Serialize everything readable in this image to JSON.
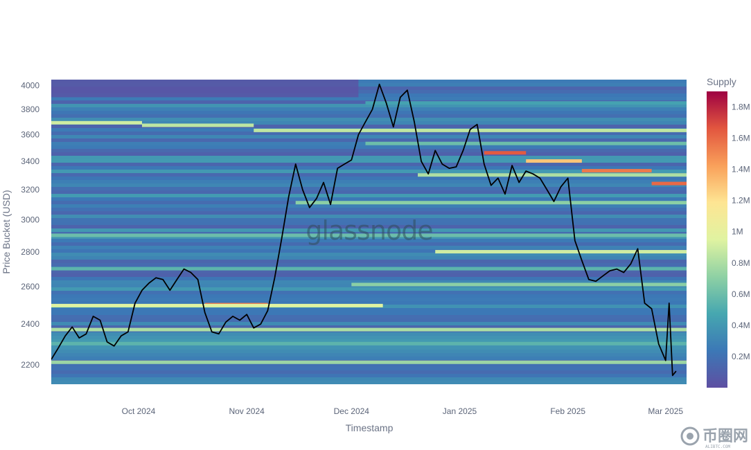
{
  "watermark": "glassnode",
  "brand": {
    "name": "币圈网",
    "sub": "ALIBTC.COM"
  },
  "colors": {
    "price_line": "#000000",
    "scale": [
      "#5e4fa2",
      "#3c78b6",
      "#46a7b0",
      "#8fd1a4",
      "#e0f3a1",
      "#fee593",
      "#f9a05a",
      "#e2563f",
      "#9e0142"
    ]
  },
  "chart_data": {
    "type": "heatmap",
    "xlabel": "Timestamp",
    "ylabel": "Price Bucket (USD)",
    "y_scale": "log",
    "ylim": [
      2110,
      4050
    ],
    "xlim": [
      "2024-09-06",
      "2025-03-07"
    ],
    "x_ticks": [
      {
        "date": "2024-10-01",
        "label": "Oct 2024"
      },
      {
        "date": "2024-11-01",
        "label": "Nov 2024"
      },
      {
        "date": "2024-12-01",
        "label": "Dec 2024"
      },
      {
        "date": "2025-01-01",
        "label": "Jan 2025"
      },
      {
        "date": "2025-02-01",
        "label": "Feb 2025"
      },
      {
        "date": "2025-03-01",
        "label": "Mar 2025"
      }
    ],
    "y_ticks": [
      2200,
      2400,
      2600,
      2800,
      3000,
      3200,
      3400,
      3600,
      3800,
      4000
    ],
    "colorbar": {
      "title": "Supply",
      "range": [
        0,
        1.9
      ],
      "ticks": [
        {
          "value": 0.2,
          "label": "0.2M"
        },
        {
          "value": 0.4,
          "label": "0.4M"
        },
        {
          "value": 0.6,
          "label": "0.6M"
        },
        {
          "value": 0.8,
          "label": "0.8M"
        },
        {
          "value": 1.0,
          "label": "1M"
        },
        {
          "value": 1.2,
          "label": "1.2M"
        },
        {
          "value": 1.4,
          "label": "1.4M"
        },
        {
          "value": 1.6,
          "label": "1.6M"
        },
        {
          "value": 1.8,
          "label": "1.8M"
        }
      ]
    },
    "base_supply": 0.3,
    "supply_bands": [
      {
        "price": 3690,
        "start": "2024-09-06",
        "end": "2024-10-02",
        "value": 0.9
      },
      {
        "price": 3670,
        "start": "2024-10-02",
        "end": "2024-11-03",
        "value": 0.85
      },
      {
        "price": 3630,
        "start": "2024-11-03",
        "end": "2025-03-07",
        "value": 0.85
      },
      {
        "price": 3460,
        "start": "2025-01-08",
        "end": "2025-01-20",
        "value": 1.65
      },
      {
        "price": 3400,
        "start": "2025-01-20",
        "end": "2025-02-05",
        "value": 1.3
      },
      {
        "price": 3330,
        "start": "2025-02-05",
        "end": "2025-02-25",
        "value": 1.55
      },
      {
        "price": 3240,
        "start": "2025-02-25",
        "end": "2025-03-07",
        "value": 1.6
      },
      {
        "price": 3300,
        "start": "2024-12-20",
        "end": "2025-03-07",
        "value": 0.8
      },
      {
        "price": 3110,
        "start": "2024-11-15",
        "end": "2025-03-07",
        "value": 0.7
      },
      {
        "price": 2800,
        "start": "2024-12-25",
        "end": "2025-03-07",
        "value": 0.9
      },
      {
        "price": 2610,
        "start": "2024-12-01",
        "end": "2025-03-07",
        "value": 0.7
      },
      {
        "price": 2500,
        "start": "2024-10-20",
        "end": "2024-11-07",
        "value": 1.55
      },
      {
        "price": 2495,
        "start": "2024-09-06",
        "end": "2024-12-10",
        "value": 0.95
      },
      {
        "price": 2370,
        "start": "2024-09-06",
        "end": "2025-03-07",
        "value": 0.8
      },
      {
        "price": 2210,
        "start": "2024-09-06",
        "end": "2025-03-07",
        "value": 0.75
      },
      {
        "price": 2900,
        "start": "2024-09-06",
        "end": "2025-03-07",
        "value": 0.6
      },
      {
        "price": 2700,
        "start": "2024-09-06",
        "end": "2025-03-07",
        "value": 0.55
      },
      {
        "price": 2300,
        "start": "2024-09-06",
        "end": "2025-03-07",
        "value": 0.55
      },
      {
        "price": 3850,
        "start": "2024-12-05",
        "end": "2025-03-07",
        "value": 0.45
      },
      {
        "price": 3530,
        "start": "2024-12-05",
        "end": "2025-03-07",
        "value": 0.6
      }
    ],
    "series": [
      {
        "name": "Price",
        "points": [
          [
            "2024-09-06",
            2225
          ],
          [
            "2024-09-08",
            2280
          ],
          [
            "2024-09-10",
            2340
          ],
          [
            "2024-09-12",
            2385
          ],
          [
            "2024-09-14",
            2330
          ],
          [
            "2024-09-16",
            2350
          ],
          [
            "2024-09-18",
            2440
          ],
          [
            "2024-09-20",
            2420
          ],
          [
            "2024-09-22",
            2310
          ],
          [
            "2024-09-24",
            2290
          ],
          [
            "2024-09-26",
            2340
          ],
          [
            "2024-09-28",
            2360
          ],
          [
            "2024-09-30",
            2510
          ],
          [
            "2024-10-02",
            2580
          ],
          [
            "2024-10-04",
            2620
          ],
          [
            "2024-10-06",
            2650
          ],
          [
            "2024-10-08",
            2640
          ],
          [
            "2024-10-10",
            2580
          ],
          [
            "2024-10-12",
            2640
          ],
          [
            "2024-10-14",
            2700
          ],
          [
            "2024-10-16",
            2680
          ],
          [
            "2024-10-18",
            2640
          ],
          [
            "2024-10-20",
            2460
          ],
          [
            "2024-10-22",
            2360
          ],
          [
            "2024-10-24",
            2350
          ],
          [
            "2024-10-26",
            2410
          ],
          [
            "2024-10-28",
            2440
          ],
          [
            "2024-10-30",
            2420
          ],
          [
            "2024-11-01",
            2450
          ],
          [
            "2024-11-03",
            2380
          ],
          [
            "2024-11-05",
            2400
          ],
          [
            "2024-11-07",
            2470
          ],
          [
            "2024-11-09",
            2650
          ],
          [
            "2024-11-11",
            2880
          ],
          [
            "2024-11-13",
            3150
          ],
          [
            "2024-11-15",
            3380
          ],
          [
            "2024-11-17",
            3200
          ],
          [
            "2024-11-19",
            3080
          ],
          [
            "2024-11-21",
            3140
          ],
          [
            "2024-11-23",
            3250
          ],
          [
            "2024-11-25",
            3100
          ],
          [
            "2024-11-27",
            3350
          ],
          [
            "2024-11-29",
            3380
          ],
          [
            "2024-12-01",
            3410
          ],
          [
            "2024-12-03",
            3600
          ],
          [
            "2024-12-05",
            3700
          ],
          [
            "2024-12-07",
            3800
          ],
          [
            "2024-12-09",
            4010
          ],
          [
            "2024-12-11",
            3850
          ],
          [
            "2024-12-13",
            3660
          ],
          [
            "2024-12-15",
            3900
          ],
          [
            "2024-12-17",
            3960
          ],
          [
            "2024-12-19",
            3700
          ],
          [
            "2024-12-21",
            3400
          ],
          [
            "2024-12-23",
            3310
          ],
          [
            "2024-12-25",
            3480
          ],
          [
            "2024-12-27",
            3380
          ],
          [
            "2024-12-29",
            3350
          ],
          [
            "2024-12-31",
            3360
          ],
          [
            "2025-01-02",
            3480
          ],
          [
            "2025-01-04",
            3640
          ],
          [
            "2025-01-06",
            3680
          ],
          [
            "2025-01-08",
            3380
          ],
          [
            "2025-01-10",
            3230
          ],
          [
            "2025-01-12",
            3280
          ],
          [
            "2025-01-14",
            3170
          ],
          [
            "2025-01-16",
            3370
          ],
          [
            "2025-01-18",
            3250
          ],
          [
            "2025-01-20",
            3330
          ],
          [
            "2025-01-22",
            3310
          ],
          [
            "2025-01-24",
            3280
          ],
          [
            "2025-01-26",
            3200
          ],
          [
            "2025-01-28",
            3120
          ],
          [
            "2025-01-30",
            3220
          ],
          [
            "2025-02-01",
            3280
          ],
          [
            "2025-02-03",
            2870
          ],
          [
            "2025-02-05",
            2750
          ],
          [
            "2025-02-07",
            2640
          ],
          [
            "2025-02-09",
            2630
          ],
          [
            "2025-02-11",
            2660
          ],
          [
            "2025-02-13",
            2690
          ],
          [
            "2025-02-15",
            2700
          ],
          [
            "2025-02-17",
            2680
          ],
          [
            "2025-02-19",
            2730
          ],
          [
            "2025-02-21",
            2820
          ],
          [
            "2025-02-23",
            2510
          ],
          [
            "2025-02-25",
            2480
          ],
          [
            "2025-02-27",
            2300
          ],
          [
            "2025-03-01",
            2220
          ],
          [
            "2025-03-02",
            2510
          ],
          [
            "2025-03-03",
            2150
          ],
          [
            "2025-03-04",
            2170
          ]
        ]
      }
    ]
  }
}
